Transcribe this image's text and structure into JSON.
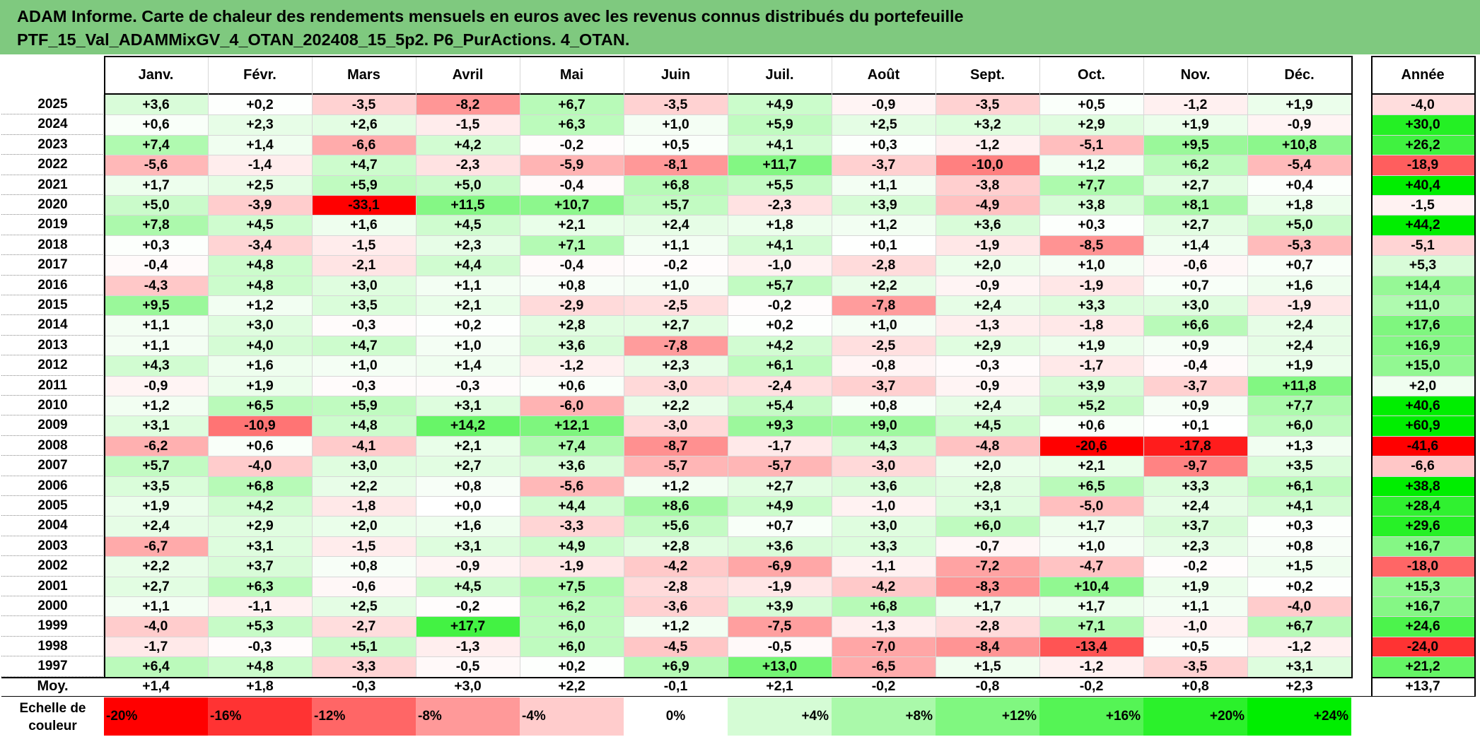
{
  "title": {
    "line1": "ADAM Informe. Carte de chaleur des rendements mensuels en euros avec les revenus connus distribués du portefeuille",
    "line2": "PTF_15_Val_ADAMMixGV_4_OTAN_202408_15_5p2. P6_PurActions. 4_OTAN."
  },
  "chart_data": {
    "type": "heatmap",
    "row_axis_label": "",
    "columns": [
      "Janv.",
      "Févr.",
      "Mars",
      "Avril",
      "Mai",
      "Juin",
      "Juil.",
      "Août",
      "Sept.",
      "Oct.",
      "Nov.",
      "Déc."
    ],
    "annual_label": "Année",
    "rows": [
      {
        "year": "2025",
        "values": [
          "+3,6",
          "+0,2",
          "-3,5",
          "-8,2",
          "+6,7",
          "-3,5",
          "+4,9",
          "-0,9",
          "-3,5",
          "+0,5",
          "-1,2",
          "+1,9"
        ],
        "annual": "-4,0"
      },
      {
        "year": "2024",
        "values": [
          "+0,6",
          "+2,3",
          "+2,6",
          "-1,5",
          "+6,3",
          "+1,0",
          "+5,9",
          "+2,5",
          "+3,2",
          "+2,9",
          "+1,9",
          "-0,9"
        ],
        "annual": "+30,0"
      },
      {
        "year": "2023",
        "values": [
          "+7,4",
          "+1,4",
          "-6,6",
          "+4,2",
          "-0,2",
          "+0,5",
          "+4,1",
          "+0,3",
          "-1,2",
          "-5,1",
          "+9,5",
          "+10,8"
        ],
        "annual": "+26,2"
      },
      {
        "year": "2022",
        "values": [
          "-5,6",
          "-1,4",
          "+4,7",
          "-2,3",
          "-5,9",
          "-8,1",
          "+11,7",
          "-3,7",
          "-10,0",
          "+1,2",
          "+6,2",
          "-5,4"
        ],
        "annual": "-18,9"
      },
      {
        "year": "2021",
        "values": [
          "+1,7",
          "+2,5",
          "+5,9",
          "+5,0",
          "-0,4",
          "+6,8",
          "+5,5",
          "+1,1",
          "-3,8",
          "+7,7",
          "+2,7",
          "+0,4"
        ],
        "annual": "+40,4"
      },
      {
        "year": "2020",
        "values": [
          "+5,0",
          "-3,9",
          "-33,1",
          "+11,5",
          "+10,7",
          "+5,7",
          "-2,3",
          "+3,9",
          "-4,9",
          "+3,8",
          "+8,1",
          "+1,8"
        ],
        "annual": "-1,5"
      },
      {
        "year": "2019",
        "values": [
          "+7,8",
          "+4,5",
          "+1,6",
          "+4,5",
          "+2,1",
          "+2,4",
          "+1,8",
          "+1,2",
          "+3,6",
          "+0,3",
          "+2,7",
          "+5,0"
        ],
        "annual": "+44,2"
      },
      {
        "year": "2018",
        "values": [
          "+0,3",
          "-3,4",
          "-1,5",
          "+2,3",
          "+7,1",
          "+1,1",
          "+4,1",
          "+0,1",
          "-1,9",
          "-8,5",
          "+1,4",
          "-5,3"
        ],
        "annual": "-5,1"
      },
      {
        "year": "2017",
        "values": [
          "-0,4",
          "+4,8",
          "-2,1",
          "+4,4",
          "-0,4",
          "-0,2",
          "-1,0",
          "-2,8",
          "+2,0",
          "+1,0",
          "-0,6",
          "+0,7"
        ],
        "annual": "+5,3"
      },
      {
        "year": "2016",
        "values": [
          "-4,3",
          "+4,8",
          "+3,0",
          "+1,1",
          "+0,8",
          "+1,0",
          "+5,7",
          "+2,2",
          "-0,9",
          "-1,9",
          "+0,7",
          "+1,6"
        ],
        "annual": "+14,4"
      },
      {
        "year": "2015",
        "values": [
          "+9,5",
          "+1,2",
          "+3,5",
          "+2,1",
          "-2,9",
          "-2,5",
          "-0,2",
          "-7,8",
          "+2,4",
          "+3,3",
          "+3,0",
          "-1,9"
        ],
        "annual": "+11,0"
      },
      {
        "year": "2014",
        "values": [
          "+1,1",
          "+3,0",
          "-0,3",
          "+0,2",
          "+2,8",
          "+2,7",
          "+0,2",
          "+1,0",
          "-1,3",
          "-1,8",
          "+6,6",
          "+2,4"
        ],
        "annual": "+17,6"
      },
      {
        "year": "2013",
        "values": [
          "+1,1",
          "+4,0",
          "+4,7",
          "+1,0",
          "+3,6",
          "-7,8",
          "+4,2",
          "-2,5",
          "+2,9",
          "+1,9",
          "+0,9",
          "+2,4"
        ],
        "annual": "+16,9"
      },
      {
        "year": "2012",
        "values": [
          "+4,3",
          "+1,6",
          "+1,0",
          "+1,4",
          "-1,2",
          "+2,3",
          "+6,1",
          "-0,8",
          "-0,3",
          "-1,7",
          "-0,4",
          "+1,9"
        ],
        "annual": "+15,0"
      },
      {
        "year": "2011",
        "values": [
          "-0,9",
          "+1,9",
          "-0,3",
          "-0,3",
          "+0,6",
          "-3,0",
          "-2,4",
          "-3,7",
          "-0,9",
          "+3,9",
          "-3,7",
          "+11,8"
        ],
        "annual": "+2,0"
      },
      {
        "year": "2010",
        "values": [
          "+1,2",
          "+6,5",
          "+5,9",
          "+3,1",
          "-6,0",
          "+2,2",
          "+5,4",
          "+0,8",
          "+2,4",
          "+5,2",
          "+0,9",
          "+7,7"
        ],
        "annual": "+40,6"
      },
      {
        "year": "2009",
        "values": [
          "+3,1",
          "-10,9",
          "+4,8",
          "+14,2",
          "+12,1",
          "-3,0",
          "+9,3",
          "+9,0",
          "+4,5",
          "+0,6",
          "+0,1",
          "+6,0"
        ],
        "annual": "+60,9"
      },
      {
        "year": "2008",
        "values": [
          "-6,2",
          "+0,6",
          "-4,1",
          "+2,1",
          "+7,4",
          "-8,7",
          "-1,7",
          "+4,3",
          "-4,8",
          "-20,6",
          "-17,8",
          "+1,3"
        ],
        "annual": "-41,6"
      },
      {
        "year": "2007",
        "values": [
          "+5,7",
          "-4,0",
          "+3,0",
          "+2,7",
          "+3,6",
          "-5,7",
          "-5,7",
          "-3,0",
          "+2,0",
          "+2,1",
          "-9,7",
          "+3,5"
        ],
        "annual": "-6,6"
      },
      {
        "year": "2006",
        "values": [
          "+3,5",
          "+6,8",
          "+2,2",
          "+0,8",
          "-5,6",
          "+1,2",
          "+2,7",
          "+3,6",
          "+2,8",
          "+6,5",
          "+3,3",
          "+6,1"
        ],
        "annual": "+38,8"
      },
      {
        "year": "2005",
        "values": [
          "+1,9",
          "+4,2",
          "-1,8",
          "+0,0",
          "+4,4",
          "+8,6",
          "+4,9",
          "-1,0",
          "+3,1",
          "-5,0",
          "+2,4",
          "+4,1"
        ],
        "annual": "+28,4"
      },
      {
        "year": "2004",
        "values": [
          "+2,4",
          "+2,9",
          "+2,0",
          "+1,6",
          "-3,3",
          "+5,6",
          "+0,7",
          "+3,0",
          "+6,0",
          "+1,7",
          "+3,7",
          "+0,3"
        ],
        "annual": "+29,6"
      },
      {
        "year": "2003",
        "values": [
          "-6,7",
          "+3,1",
          "-1,5",
          "+3,1",
          "+4,9",
          "+2,8",
          "+3,6",
          "+3,3",
          "-0,7",
          "+1,0",
          "+2,3",
          "+0,8"
        ],
        "annual": "+16,7"
      },
      {
        "year": "2002",
        "values": [
          "+2,2",
          "+3,7",
          "+0,8",
          "-0,9",
          "-1,9",
          "-4,2",
          "-6,9",
          "-1,1",
          "-7,2",
          "-4,7",
          "-0,2",
          "+1,5"
        ],
        "annual": "-18,0"
      },
      {
        "year": "2001",
        "values": [
          "+2,7",
          "+6,3",
          "-0,6",
          "+4,5",
          "+7,5",
          "-2,8",
          "-1,9",
          "-4,2",
          "-8,3",
          "+10,4",
          "+1,9",
          "+0,2"
        ],
        "annual": "+15,3"
      },
      {
        "year": "2000",
        "values": [
          "+1,1",
          "-1,1",
          "+2,5",
          "-0,2",
          "+6,2",
          "-3,6",
          "+3,9",
          "+6,8",
          "+1,7",
          "+1,7",
          "+1,1",
          "-4,0"
        ],
        "annual": "+16,7"
      },
      {
        "year": "1999",
        "values": [
          "-4,0",
          "+5,3",
          "-2,7",
          "+17,7",
          "+6,0",
          "+1,2",
          "-7,5",
          "-1,3",
          "-2,8",
          "+7,1",
          "-1,0",
          "+6,7"
        ],
        "annual": "+24,6"
      },
      {
        "year": "1998",
        "values": [
          "-1,7",
          "-0,3",
          "+5,1",
          "-1,3",
          "+6,0",
          "-4,5",
          "-0,5",
          "-7,0",
          "-8,4",
          "-13,4",
          "+0,5",
          "-1,2"
        ],
        "annual": "-24,0"
      },
      {
        "year": "1997",
        "values": [
          "+6,4",
          "+4,8",
          "-3,3",
          "-0,5",
          "+0,2",
          "+6,9",
          "+13,0",
          "-6,5",
          "+1,5",
          "-1,2",
          "-3,5",
          "+3,1"
        ],
        "annual": "+21,2"
      }
    ],
    "average": {
      "label": "Moy.",
      "values": [
        "+1,4",
        "+1,8",
        "-0,3",
        "+3,0",
        "+2,2",
        "-0,1",
        "+2,1",
        "-0,2",
        "-0,8",
        "-0,2",
        "+0,8",
        "+2,3"
      ],
      "annual": "+13,7"
    },
    "scale": {
      "label_line1": "Echelle de",
      "label_line2": "couleur",
      "stops": [
        "-20%",
        "-16%",
        "-12%",
        "-8%",
        "-4%",
        "0%",
        "+4%",
        "+8%",
        "+12%",
        "+16%",
        "+20%",
        "+24%"
      ],
      "stop_values": [
        -20,
        -16,
        -12,
        -8,
        -4,
        0,
        4,
        8,
        12,
        16,
        20,
        24
      ]
    },
    "colors": {
      "negative_max": "#ff0000",
      "neutral": "#ffffff",
      "positive_max": "#00ee00",
      "title_bg": "#7fc97f"
    }
  }
}
